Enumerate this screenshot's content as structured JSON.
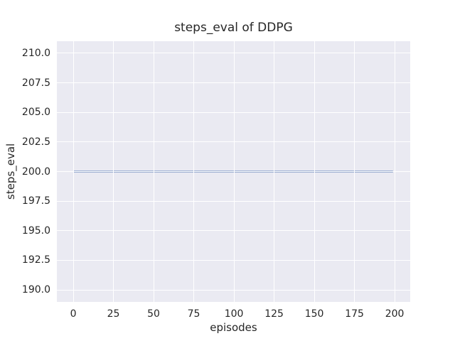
{
  "chart_data": {
    "type": "line",
    "title": "steps_eval of DDPG",
    "xlabel": "episodes",
    "ylabel": "steps_eval",
    "xlim": [
      -10.2,
      209.7
    ],
    "ylim": [
      188.98,
      211.02
    ],
    "x_ticks": [
      0,
      25,
      50,
      75,
      100,
      125,
      150,
      175,
      200
    ],
    "y_ticks": [
      190.0,
      192.5,
      195.0,
      197.5,
      200.0,
      202.5,
      205.0,
      207.5,
      210.0
    ],
    "y_tick_decimals": 1,
    "grid": true,
    "legend": "none",
    "series": [
      {
        "name": "DDPG",
        "color": "#4c72b0",
        "x": [
          0,
          199
        ],
        "y": [
          200,
          200
        ]
      }
    ],
    "styles": {
      "figure_background": "#ffffff",
      "axes_background": "#eaeaf2",
      "grid_color": "#ffffff",
      "text_color": "#262626",
      "line_width": 2
    }
  }
}
